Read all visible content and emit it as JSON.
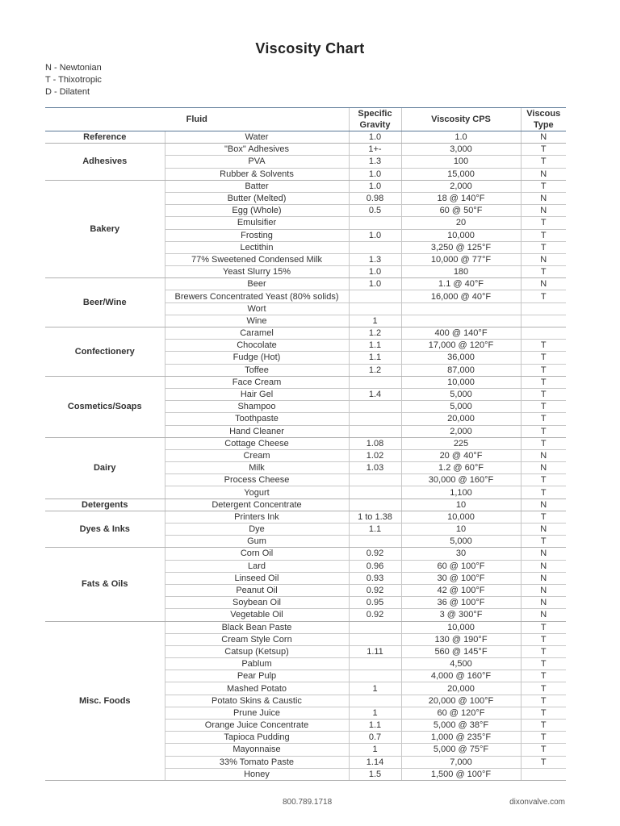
{
  "title": "Viscosity Chart",
  "legend": [
    "N - Newtonian",
    "T - Thixotropic",
    "D - Dilatent"
  ],
  "table": {
    "headers": {
      "fluid": "Fluid",
      "sg_line1": "Specific",
      "sg_line2": "Gravity",
      "viscosity": "Viscosity CPS",
      "type_line1": "Viscous",
      "type_line2": "Type"
    },
    "groups": [
      {
        "category": "Reference",
        "rows": [
          [
            "Water",
            "1.0",
            "1.0",
            "N"
          ]
        ]
      },
      {
        "category": "Adhesives",
        "rows": [
          [
            "\"Box\" Adhesives",
            "1+-",
            "3,000",
            "T"
          ],
          [
            "PVA",
            "1.3",
            "100",
            "T"
          ],
          [
            "Rubber & Solvents",
            "1.0",
            "15,000",
            "N"
          ]
        ]
      },
      {
        "category": "Bakery",
        "rows": [
          [
            "Batter",
            "1.0",
            "2,000",
            "T"
          ],
          [
            "Butter (Melted)",
            "0.98",
            "18 @ 140°F",
            "N"
          ],
          [
            "Egg (Whole)",
            "0.5",
            "60 @ 50°F",
            "N"
          ],
          [
            "Emulsifier",
            "",
            "20",
            "T"
          ],
          [
            "Frosting",
            "1.0",
            "10,000",
            "T"
          ],
          [
            "Lectithin",
            "",
            "3,250 @ 125°F",
            "T"
          ],
          [
            "77% Sweetened Condensed Milk",
            "1.3",
            "10,000 @ 77°F",
            "N"
          ],
          [
            "Yeast Slurry 15%",
            "1.0",
            "180",
            "T"
          ]
        ]
      },
      {
        "category": "Beer/Wine",
        "rows": [
          [
            "Beer",
            "1.0",
            "1.1 @ 40°F",
            "N"
          ],
          [
            "Brewers Concentrated Yeast (80% solids)",
            "",
            "16,000 @ 40°F",
            "T"
          ],
          [
            "Wort",
            "",
            "",
            ""
          ],
          [
            "Wine",
            "1",
            "",
            ""
          ]
        ]
      },
      {
        "category": "Confectionery",
        "rows": [
          [
            "Caramel",
            "1.2",
            "400 @ 140°F",
            ""
          ],
          [
            "Chocolate",
            "1.1",
            "17,000 @ 120°F",
            "T"
          ],
          [
            "Fudge (Hot)",
            "1.1",
            "36,000",
            "T"
          ],
          [
            "Toffee",
            "1.2",
            "87,000",
            "T"
          ]
        ]
      },
      {
        "category": "Cosmetics/Soaps",
        "rows": [
          [
            "Face Cream",
            "",
            "10,000",
            "T"
          ],
          [
            "Hair Gel",
            "1.4",
            "5,000",
            "T"
          ],
          [
            "Shampoo",
            "",
            "5,000",
            "T"
          ],
          [
            "Toothpaste",
            "",
            "20,000",
            "T"
          ],
          [
            "Hand Cleaner",
            "",
            "2,000",
            "T"
          ]
        ]
      },
      {
        "category": "Dairy",
        "rows": [
          [
            "Cottage Cheese",
            "1.08",
            "225",
            "T"
          ],
          [
            "Cream",
            "1.02",
            "20 @ 40°F",
            "N"
          ],
          [
            "Milk",
            "1.03",
            "1.2 @ 60°F",
            "N"
          ],
          [
            "Process Cheese",
            "",
            "30,000 @ 160°F",
            "T"
          ],
          [
            "Yogurt",
            "",
            "1,100",
            "T"
          ]
        ]
      },
      {
        "category": "Detergents",
        "rows": [
          [
            "Detergent Concentrate",
            "",
            "10",
            "N"
          ]
        ]
      },
      {
        "category": "Dyes & Inks",
        "rows": [
          [
            "Printers Ink",
            "1 to 1.38",
            "10,000",
            "T"
          ],
          [
            "Dye",
            "1.1",
            "10",
            "N"
          ],
          [
            "Gum",
            "",
            "5,000",
            "T"
          ]
        ]
      },
      {
        "category": "Fats & Oils",
        "rows": [
          [
            "Corn Oil",
            "0.92",
            "30",
            "N"
          ],
          [
            "Lard",
            "0.96",
            "60 @ 100°F",
            "N"
          ],
          [
            "Linseed Oil",
            "0.93",
            "30 @ 100°F",
            "N"
          ],
          [
            "Peanut Oil",
            "0.92",
            "42 @ 100°F",
            "N"
          ],
          [
            "Soybean Oil",
            "0.95",
            "36  @ 100°F",
            "N"
          ],
          [
            "Vegetable Oil",
            "0.92",
            "3 @ 300°F",
            "N"
          ]
        ]
      },
      {
        "category": "Misc. Foods",
        "rows": [
          [
            "Black Bean Paste",
            "",
            "10,000",
            "T"
          ],
          [
            "Cream Style Corn",
            "",
            "130 @ 190°F",
            "T"
          ],
          [
            "Catsup (Ketsup)",
            "1.11",
            "560 @ 145°F",
            "T"
          ],
          [
            "Pablum",
            "",
            "4,500",
            "T"
          ],
          [
            "Pear Pulp",
            "",
            "4,000 @ 160°F",
            "T"
          ],
          [
            "Mashed Potato",
            "1",
            "20,000",
            "T"
          ],
          [
            "Potato Skins & Caustic",
            "",
            "20,000 @ 100°F",
            "T"
          ],
          [
            "Prune Juice",
            "1",
            "60 @ 120°F",
            "T"
          ],
          [
            "Orange Juice Concentrate",
            "1.1",
            "5,000 @ 38°F",
            "T"
          ],
          [
            "Tapioca Pudding",
            "0.7",
            "1,000 @ 235°F",
            "T"
          ],
          [
            "Mayonnaise",
            "1",
            "5,000 @ 75°F",
            "T"
          ],
          [
            "33% Tomato Paste",
            "1.14",
            "7,000",
            "T"
          ],
          [
            "Honey",
            "1.5",
            "1,500 @ 100°F",
            ""
          ]
        ]
      }
    ]
  },
  "footer": {
    "phone": "800.789.1718",
    "website": "dixonvalve.com"
  }
}
